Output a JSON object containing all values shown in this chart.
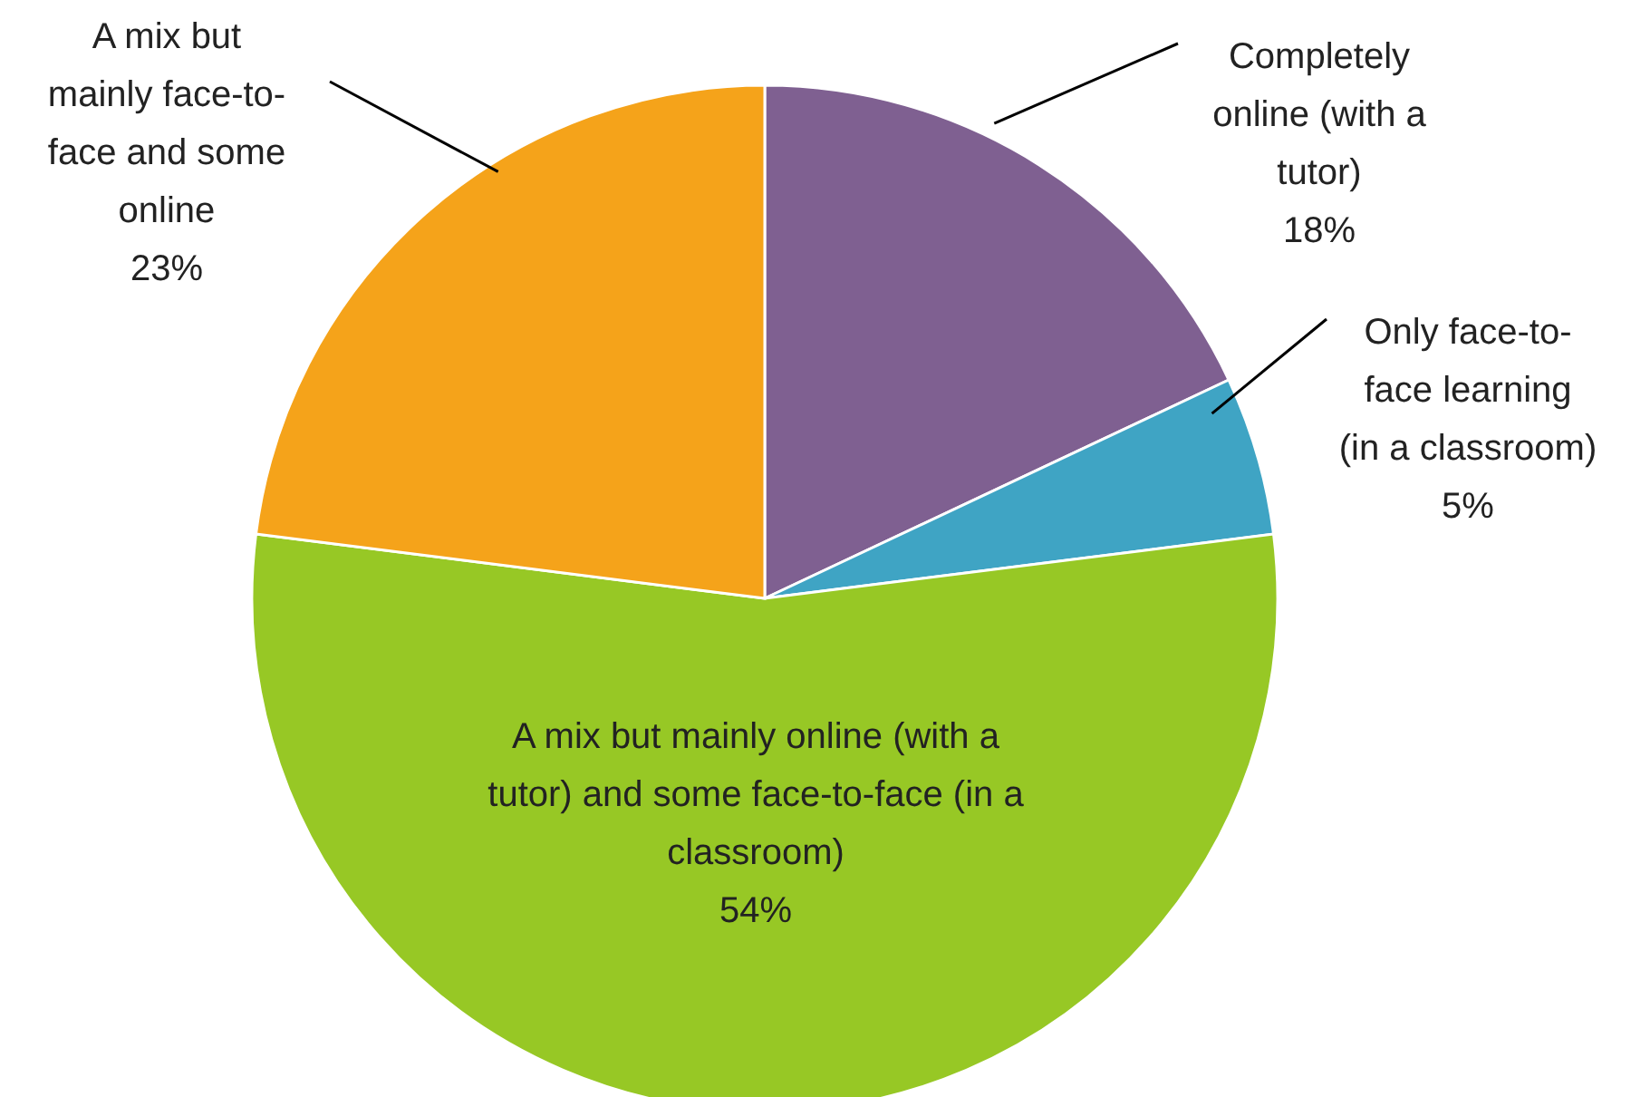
{
  "chart_data": {
    "type": "pie",
    "categories": [
      "Completely online (with a tutor)",
      "Only face-to-face learning (in a classroom)",
      "A mix but mainly online (with a tutor) and some face-to-face (in a classroom)",
      "A mix but mainly face-to-face and some online"
    ],
    "values": [
      18,
      5,
      54,
      23
    ],
    "value_labels": [
      "18%",
      "5%",
      "54%",
      "23%"
    ],
    "colors": [
      "#7f6091",
      "#3fa4c4",
      "#97c825",
      "#f5a31a"
    ],
    "legend": false
  }
}
